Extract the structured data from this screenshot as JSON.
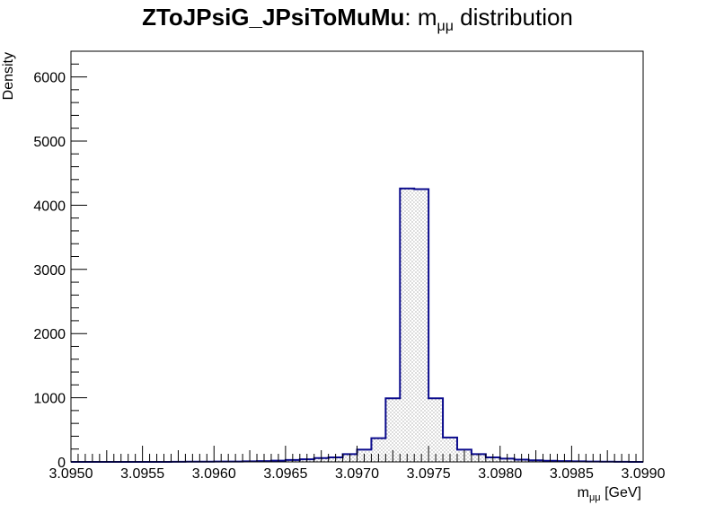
{
  "chart_data": {
    "type": "bar",
    "title_bold": "ZToJPsiG_JPsiToMuMu",
    "title_rest": ": m",
    "title_sub": "μμ",
    "title_tail": " distribution",
    "ylabel": "Density",
    "xlabel_main": "m",
    "xlabel_sub": "μμ",
    "xlabel_tail": " [GeV]",
    "xlim": [
      3.095,
      3.099
    ],
    "ylim": [
      0,
      6400
    ],
    "x_ticks": [
      "3.0950",
      "3.0955",
      "3.0960",
      "3.0965",
      "3.0970",
      "3.0975",
      "3.0980",
      "3.0985",
      "3.0990"
    ],
    "y_ticks": [
      "0",
      "1000",
      "2000",
      "3000",
      "4000",
      "5000",
      "6000"
    ],
    "bin_width": 0.0001,
    "bin_edges_start": 3.095,
    "values": [
      0,
      0,
      0,
      0,
      0,
      0,
      0,
      2,
      3,
      4,
      5,
      6,
      8,
      12,
      20,
      30,
      40,
      60,
      70,
      120,
      190,
      370,
      990,
      4260,
      4250,
      990,
      380,
      190,
      120,
      70,
      50,
      35,
      25,
      18,
      12,
      8,
      5,
      3,
      2,
      0
    ],
    "line_color": "#0a0a8c",
    "fill_pattern": "dots"
  }
}
